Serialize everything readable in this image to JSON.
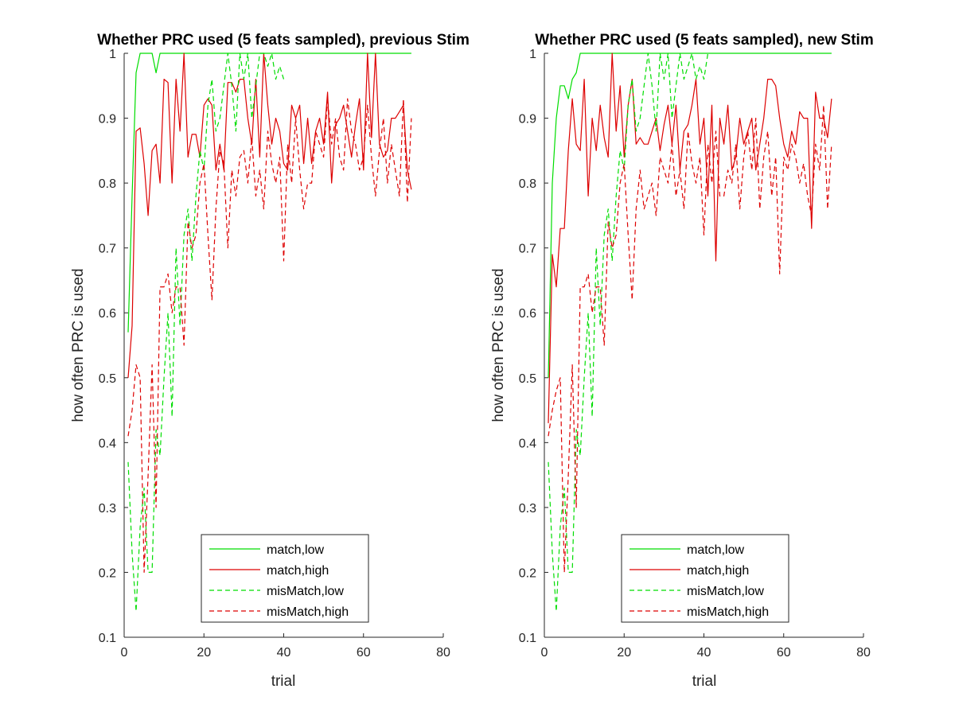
{
  "figure": {
    "background": "#ffffff"
  },
  "colors": {
    "green": "#00dd00",
    "red": "#dd0000",
    "axis": "#262626"
  },
  "chart_data": [
    {
      "type": "line",
      "title": "Whether PRC used (5 feats sampled), previous Stim",
      "xlabel": "trial",
      "ylabel": "how often PRC is used",
      "xlim": [
        0,
        80
      ],
      "ylim": [
        0.1,
        1
      ],
      "xticks": [
        "0",
        "20",
        "40",
        "60",
        "80"
      ],
      "yticks": [
        "0.1",
        "0.2",
        "0.3",
        "0.4",
        "0.5",
        "0.6",
        "0.7",
        "0.8",
        "0.9",
        "1"
      ],
      "grid": false,
      "legend_position": "bottom-center",
      "series": [
        {
          "name": "match,low",
          "color": "#00dd00",
          "dash": "solid",
          "x": [
            1,
            2,
            3,
            4,
            5,
            6,
            7,
            8,
            9,
            10,
            12,
            15,
            20,
            30,
            40,
            50,
            60,
            72
          ],
          "y": [
            0.57,
            0.78,
            0.97,
            1,
            1,
            1,
            1,
            0.97,
            1,
            1,
            1,
            1,
            1,
            1,
            1,
            1,
            1,
            1
          ]
        },
        {
          "name": "match,high",
          "color": "#dd0000",
          "dash": "solid",
          "x": [
            1,
            2,
            3,
            4,
            5,
            6,
            7,
            8,
            9,
            10,
            11,
            12,
            13,
            14,
            15,
            16,
            17,
            18,
            19,
            20,
            21,
            22,
            23,
            24,
            25,
            26,
            27,
            28,
            29,
            30,
            31,
            32,
            33,
            34,
            35,
            36,
            37,
            38,
            39,
            40,
            41,
            42,
            43,
            44,
            45,
            46,
            47,
            48,
            49,
            50,
            51,
            52,
            53,
            54,
            55,
            56,
            57,
            58,
            59,
            60,
            61,
            62,
            63,
            64,
            65,
            66,
            67,
            68,
            69,
            70,
            71,
            72
          ],
          "y": [
            0.5,
            0.58,
            0.88,
            0.885,
            0.83,
            0.75,
            0.85,
            0.86,
            0.8,
            0.96,
            0.955,
            0.8,
            0.96,
            0.88,
            1,
            0.84,
            0.875,
            0.875,
            0.84,
            0.92,
            0.93,
            0.92,
            0.82,
            0.86,
            0.82,
            0.955,
            0.955,
            0.94,
            0.96,
            0.96,
            0.9,
            0.86,
            0.96,
            0.84,
            1,
            0.92,
            0.86,
            0.9,
            0.88,
            0.83,
            0.82,
            0.92,
            0.9,
            0.92,
            0.83,
            0.9,
            0.83,
            0.88,
            0.9,
            0.86,
            0.94,
            0.8,
            0.89,
            0.9,
            0.92,
            0.88,
            0.84,
            0.89,
            0.93,
            0.82,
            1,
            0.87,
            1,
            0.86,
            0.84,
            0.85,
            0.9,
            0.9,
            0.91,
            0.92,
            0.82,
            0.79
          ]
        },
        {
          "name": "misMatch,low",
          "color": "#00dd00",
          "dash": "dashed",
          "x": [
            1,
            2,
            3,
            4,
            5,
            6,
            7,
            8,
            9,
            10,
            11,
            12,
            13,
            14,
            15,
            16,
            17,
            18,
            19,
            20,
            21,
            22,
            23,
            24,
            25,
            26,
            27,
            28,
            29,
            30,
            31,
            32,
            33,
            34,
            35,
            36,
            37,
            38,
            39,
            40
          ],
          "y": [
            0.37,
            0.23,
            0.14,
            0.27,
            0.33,
            0.2,
            0.2,
            0.42,
            0.38,
            0.5,
            0.6,
            0.44,
            0.7,
            0.58,
            0.72,
            0.76,
            0.68,
            0.78,
            0.85,
            0.82,
            0.92,
            0.96,
            0.88,
            0.9,
            0.95,
            1,
            0.95,
            0.88,
            1,
            0.96,
            1,
            0.9,
            0.95,
            1,
            1,
            0.98,
            1,
            0.96,
            0.98,
            0.96
          ]
        },
        {
          "name": "misMatch,high",
          "color": "#dd0000",
          "dash": "dashed",
          "x": [
            1,
            2,
            3,
            4,
            5,
            6,
            7,
            8,
            9,
            10,
            11,
            12,
            13,
            14,
            15,
            16,
            17,
            18,
            19,
            20,
            21,
            22,
            23,
            24,
            25,
            26,
            27,
            28,
            29,
            30,
            31,
            32,
            33,
            34,
            35,
            36,
            37,
            38,
            39,
            40,
            41,
            42,
            43,
            44,
            45,
            46,
            47,
            48,
            49,
            50,
            51,
            52,
            53,
            54,
            55,
            56,
            57,
            58,
            59,
            60,
            61,
            62,
            63,
            64,
            65,
            66,
            67,
            68,
            69,
            70,
            71,
            72
          ],
          "y": [
            0.41,
            0.45,
            0.52,
            0.5,
            0.2,
            0.35,
            0.52,
            0.3,
            0.64,
            0.64,
            0.66,
            0.6,
            0.64,
            0.64,
            0.55,
            0.74,
            0.7,
            0.72,
            0.8,
            0.83,
            0.72,
            0.62,
            0.76,
            0.85,
            0.83,
            0.7,
            0.82,
            0.78,
            0.84,
            0.85,
            0.8,
            0.87,
            0.78,
            0.82,
            0.76,
            0.88,
            0.83,
            0.8,
            0.84,
            0.68,
            0.86,
            0.8,
            0.9,
            0.82,
            0.76,
            0.8,
            0.8,
            0.88,
            0.86,
            0.84,
            0.93,
            0.86,
            0.9,
            0.84,
            0.82,
            0.93,
            0.88,
            0.86,
            0.82,
            0.84,
            0.92,
            0.84,
            0.78,
            0.85,
            0.9,
            0.8,
            0.86,
            0.82,
            0.78,
            0.93,
            0.77,
            0.9
          ]
        }
      ]
    },
    {
      "type": "line",
      "title": "Whether PRC used (5 feats sampled), new Stim",
      "xlabel": "trial",
      "ylabel": "how often PRC is used",
      "xlim": [
        0,
        80
      ],
      "ylim": [
        0.1,
        1
      ],
      "xticks": [
        "0",
        "20",
        "40",
        "60",
        "80"
      ],
      "yticks": [
        "0.1",
        "0.2",
        "0.3",
        "0.4",
        "0.5",
        "0.6",
        "0.7",
        "0.8",
        "0.9",
        "1"
      ],
      "grid": false,
      "legend_position": "bottom-center",
      "series": [
        {
          "name": "match,low",
          "color": "#00dd00",
          "dash": "solid",
          "x": [
            1,
            2,
            3,
            4,
            5,
            6,
            7,
            8,
            9,
            10,
            15,
            20,
            30,
            40,
            50,
            60,
            72
          ],
          "y": [
            0.5,
            0.8,
            0.9,
            0.95,
            0.95,
            0.93,
            0.96,
            0.97,
            1,
            1,
            1,
            1,
            1,
            1,
            1,
            1,
            1
          ]
        },
        {
          "name": "match,high",
          "color": "#dd0000",
          "dash": "solid",
          "x": [
            1,
            2,
            3,
            4,
            5,
            6,
            7,
            8,
            9,
            10,
            11,
            12,
            13,
            14,
            15,
            16,
            17,
            18,
            19,
            20,
            21,
            22,
            23,
            24,
            25,
            26,
            27,
            28,
            29,
            30,
            31,
            32,
            33,
            34,
            35,
            36,
            37,
            38,
            39,
            40,
            41,
            42,
            43,
            44,
            45,
            46,
            47,
            48,
            49,
            50,
            51,
            52,
            53,
            54,
            55,
            56,
            57,
            58,
            59,
            60,
            61,
            62,
            63,
            64,
            65,
            66,
            67,
            68,
            69,
            70,
            71,
            72
          ],
          "y": [
            0.43,
            0.69,
            0.64,
            0.73,
            0.73,
            0.85,
            0.93,
            0.86,
            0.85,
            0.96,
            0.78,
            0.9,
            0.85,
            0.92,
            0.87,
            0.84,
            1,
            0.88,
            0.95,
            0.84,
            0.92,
            0.96,
            0.86,
            0.87,
            0.86,
            0.86,
            0.88,
            0.9,
            0.85,
            0.89,
            0.92,
            0.86,
            0.92,
            0.82,
            0.88,
            0.89,
            0.92,
            0.96,
            0.86,
            0.9,
            0.78,
            0.92,
            0.68,
            0.9,
            0.86,
            0.92,
            0.82,
            0.84,
            0.9,
            0.86,
            0.88,
            0.9,
            0.82,
            0.86,
            0.9,
            0.96,
            0.96,
            0.95,
            0.9,
            0.86,
            0.84,
            0.88,
            0.86,
            0.91,
            0.9,
            0.9,
            0.73,
            0.94,
            0.9,
            0.9,
            0.87,
            0.93
          ]
        },
        {
          "name": "misMatch,low",
          "color": "#00dd00",
          "dash": "dashed",
          "x": [
            1,
            2,
            3,
            4,
            5,
            6,
            7,
            8,
            9,
            10,
            11,
            12,
            13,
            14,
            15,
            16,
            17,
            18,
            19,
            20,
            21,
            22,
            23,
            24,
            25,
            26,
            27,
            28,
            29,
            30,
            31,
            32,
            33,
            34,
            35,
            36,
            37,
            38,
            39,
            40,
            41
          ],
          "y": [
            0.37,
            0.23,
            0.14,
            0.27,
            0.33,
            0.2,
            0.2,
            0.42,
            0.38,
            0.5,
            0.6,
            0.44,
            0.7,
            0.58,
            0.72,
            0.76,
            0.68,
            0.78,
            0.85,
            0.82,
            0.92,
            0.96,
            0.88,
            0.9,
            0.95,
            1,
            0.95,
            0.88,
            1,
            0.96,
            1,
            0.9,
            0.95,
            1,
            0.96,
            0.98,
            1,
            0.96,
            0.98,
            0.96,
            1
          ]
        },
        {
          "name": "misMatch,high",
          "color": "#dd0000",
          "dash": "dashed",
          "x": [
            1,
            2,
            3,
            4,
            5,
            6,
            7,
            8,
            9,
            10,
            11,
            12,
            13,
            14,
            15,
            16,
            17,
            18,
            19,
            20,
            21,
            22,
            23,
            24,
            25,
            26,
            27,
            28,
            29,
            30,
            31,
            32,
            33,
            34,
            35,
            36,
            37,
            38,
            39,
            40,
            41,
            42,
            43,
            44,
            45,
            46,
            47,
            48,
            49,
            50,
            51,
            52,
            53,
            54,
            55,
            56,
            57,
            58,
            59,
            60,
            61,
            62,
            63,
            64,
            65,
            66,
            67,
            68,
            69,
            70,
            71,
            72
          ],
          "y": [
            0.41,
            0.45,
            0.48,
            0.5,
            0.2,
            0.35,
            0.52,
            0.3,
            0.64,
            0.64,
            0.66,
            0.6,
            0.64,
            0.64,
            0.55,
            0.74,
            0.7,
            0.72,
            0.8,
            0.83,
            0.72,
            0.62,
            0.76,
            0.82,
            0.76,
            0.78,
            0.8,
            0.75,
            0.84,
            0.82,
            0.8,
            0.86,
            0.78,
            0.82,
            0.76,
            0.88,
            0.83,
            0.8,
            0.84,
            0.72,
            0.86,
            0.8,
            0.88,
            0.78,
            0.78,
            0.82,
            0.8,
            0.86,
            0.76,
            0.84,
            0.88,
            0.82,
            0.9,
            0.76,
            0.84,
            0.88,
            0.78,
            0.84,
            0.66,
            0.84,
            0.82,
            0.86,
            0.84,
            0.8,
            0.83,
            0.78,
            0.75,
            0.86,
            0.82,
            0.92,
            0.76,
            0.86
          ]
        }
      ]
    }
  ]
}
